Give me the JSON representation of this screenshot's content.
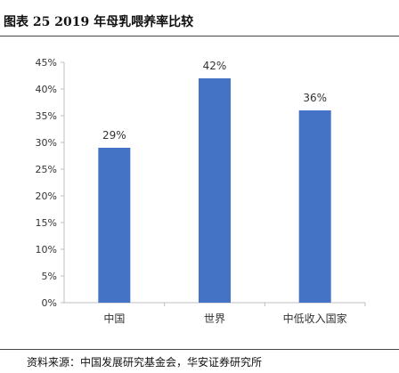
{
  "figure": {
    "title": "图表 25 2019 年母乳喂养率比较",
    "source": "资料来源：中国发展研究基金会，华安证券研究所"
  },
  "chart_data": {
    "type": "bar",
    "categories": [
      "中国",
      "世界",
      "中低收入国家"
    ],
    "values": [
      29,
      42,
      36
    ],
    "data_labels": [
      "29%",
      "42%",
      "36%"
    ],
    "ylim": [
      0,
      45
    ],
    "yticks": [
      0,
      5,
      10,
      15,
      20,
      25,
      30,
      35,
      40,
      45
    ],
    "ytick_labels": [
      "0%",
      "5%",
      "10%",
      "15%",
      "20%",
      "25%",
      "30%",
      "35%",
      "40%",
      "45%"
    ],
    "grid": false,
    "legend": "none",
    "bar_color": "#4472C4"
  }
}
